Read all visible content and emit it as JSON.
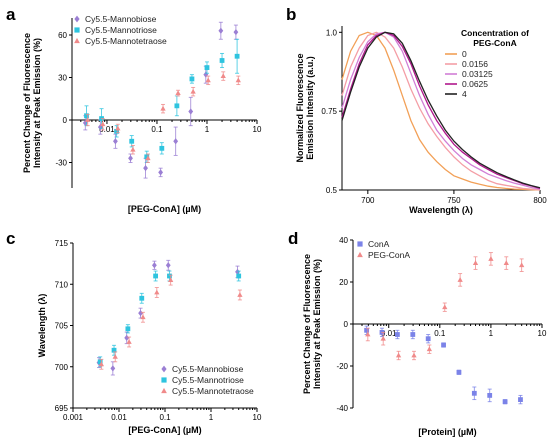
{
  "chart_data": [
    {
      "panel": "a",
      "type": "scatter",
      "xlabel": "[PEG-ConA] (µM)",
      "ylabel": "Percent Change of Fluorescence Intensity at Peak Emission (%)",
      "xscale": "log",
      "xlim": [
        0.002,
        10
      ],
      "ylim": [
        -48,
        72
      ],
      "xticks": [
        0.01,
        0.1,
        1,
        10
      ],
      "xtick_labels": [
        "0.01",
        "0.1",
        "1",
        "10"
      ],
      "yticks": [
        -30,
        0,
        30,
        60
      ],
      "ytick_labels": [
        "-30",
        "0",
        "30",
        "60"
      ],
      "x_axis_at_y": 0,
      "legend_position": "top-left",
      "series": [
        {
          "name": "Cy5.5-Mannobiose",
          "marker": "diamond",
          "color": "#9b7fd4",
          "x": [
            0.0039,
            0.0078,
            0.0156,
            0.03125,
            0.0625,
            0.125,
            0.25,
            0.5,
            1,
            2,
            4
          ],
          "y": [
            -2,
            -5,
            -15,
            -27,
            -34,
            -37,
            -15,
            6,
            32,
            63,
            62
          ],
          "err": [
            5,
            5,
            5,
            3,
            7,
            3,
            10,
            10,
            6,
            6,
            5
          ]
        },
        {
          "name": "Cy5.5-Mannotriose",
          "marker": "square",
          "color": "#2ec4df",
          "x": [
            0.0039,
            0.0078,
            0.0156,
            0.03125,
            0.0625,
            0.125,
            0.25,
            0.5,
            1,
            2,
            4
          ],
          "y": [
            3,
            1,
            -8,
            -15,
            -26,
            -20,
            10,
            29,
            37,
            42,
            45
          ],
          "err": [
            7,
            7,
            4,
            4,
            4,
            4,
            7,
            3,
            4,
            5,
            12
          ]
        },
        {
          "name": "Cy5.5-Mannotetraose",
          "marker": "triangle",
          "color": "#f08a8a",
          "x": [
            0.0039,
            0.0078,
            0.0156,
            0.03125,
            0.0625,
            0.125,
            0.25,
            0.5,
            1,
            2,
            4
          ],
          "y": [
            0,
            -3,
            -6,
            -21,
            -27,
            8,
            19,
            20,
            28,
            31,
            28
          ],
          "err": [
            4,
            4,
            3,
            3,
            3,
            3,
            2,
            3,
            3,
            3,
            3
          ]
        }
      ]
    },
    {
      "panel": "b",
      "type": "line",
      "xlabel": "Wavelength (λ)",
      "ylabel": "Normalized Fluorescence Emission Intensity (a.u.)",
      "xlim": [
        685,
        800
      ],
      "ylim": [
        0.5,
        1.02
      ],
      "xticks": [
        700,
        750,
        800
      ],
      "xtick_labels": [
        "700",
        "750",
        "800"
      ],
      "yticks": [
        0.5,
        0.75,
        1.0
      ],
      "ytick_labels": [
        "0.5",
        "0.75",
        "1.0"
      ],
      "legend_title": "Concentration of PEG-ConA",
      "legend_position": "top-right",
      "series": [
        {
          "name": "0",
          "color": "#f2a057",
          "x": [
            685,
            690,
            695,
            700,
            705,
            710,
            715,
            720,
            725,
            730,
            735,
            740,
            745,
            750,
            755,
            760,
            765,
            770,
            775,
            780,
            785,
            790,
            795,
            800
          ],
          "y": [
            0.85,
            0.94,
            0.99,
            1.0,
            0.99,
            0.95,
            0.88,
            0.8,
            0.72,
            0.66,
            0.62,
            0.59,
            0.565,
            0.545,
            0.535,
            0.525,
            0.518,
            0.512,
            0.508,
            0.505,
            0.503,
            0.502,
            0.501,
            0.5
          ]
        },
        {
          "name": "0.0156",
          "color": "#f49ea6",
          "x": [
            685,
            690,
            695,
            700,
            705,
            710,
            715,
            720,
            725,
            730,
            735,
            740,
            745,
            750,
            755,
            760,
            765,
            770,
            775,
            780,
            785,
            790,
            795,
            800
          ],
          "y": [
            0.8,
            0.89,
            0.95,
            0.99,
            1.0,
            0.985,
            0.95,
            0.89,
            0.82,
            0.76,
            0.71,
            0.67,
            0.635,
            0.605,
            0.58,
            0.56,
            0.545,
            0.53,
            0.52,
            0.515,
            0.51,
            0.505,
            0.503,
            0.5
          ]
        },
        {
          "name": "0.03125",
          "color": "#d17fd6",
          "x": [
            685,
            690,
            695,
            700,
            705,
            710,
            715,
            720,
            725,
            730,
            735,
            740,
            745,
            750,
            755,
            760,
            765,
            770,
            775,
            780,
            785,
            790,
            795,
            800
          ],
          "y": [
            0.76,
            0.85,
            0.92,
            0.97,
            0.995,
            1.0,
            0.985,
            0.94,
            0.87,
            0.8,
            0.74,
            0.69,
            0.655,
            0.625,
            0.6,
            0.58,
            0.565,
            0.55,
            0.54,
            0.53,
            0.522,
            0.515,
            0.508,
            0.503
          ]
        },
        {
          "name": "0.0625",
          "color": "#b0188c",
          "x": [
            685,
            690,
            695,
            700,
            705,
            710,
            715,
            720,
            725,
            730,
            735,
            740,
            745,
            750,
            755,
            760,
            765,
            770,
            775,
            780,
            785,
            790,
            795,
            800
          ],
          "y": [
            0.73,
            0.82,
            0.9,
            0.96,
            0.99,
            1.0,
            0.99,
            0.955,
            0.9,
            0.83,
            0.77,
            0.72,
            0.68,
            0.645,
            0.62,
            0.6,
            0.58,
            0.565,
            0.55,
            0.54,
            0.53,
            0.52,
            0.513,
            0.505
          ]
        },
        {
          "name": "4",
          "color": "#222222",
          "x": [
            685,
            690,
            695,
            700,
            705,
            710,
            715,
            720,
            725,
            730,
            735,
            740,
            745,
            750,
            755,
            760,
            765,
            770,
            775,
            780,
            785,
            790,
            795,
            800
          ],
          "y": [
            0.72,
            0.81,
            0.89,
            0.95,
            0.985,
            1.0,
            0.995,
            0.965,
            0.91,
            0.845,
            0.785,
            0.735,
            0.69,
            0.655,
            0.628,
            0.605,
            0.585,
            0.57,
            0.555,
            0.543,
            0.532,
            0.522,
            0.514,
            0.507
          ]
        }
      ]
    },
    {
      "panel": "c",
      "type": "scatter",
      "xlabel": "[PEG-ConA] (µM)",
      "ylabel": "Wavelength (λ)",
      "xscale": "log",
      "xlim": [
        0.001,
        10
      ],
      "ylim": [
        695,
        715
      ],
      "xticks": [
        0.001,
        0.01,
        0.1,
        1,
        10
      ],
      "xtick_labels": [
        "0.001",
        "0.01",
        "0.1",
        "1",
        "10"
      ],
      "yticks": [
        695,
        700,
        705,
        710,
        715
      ],
      "ytick_labels": [
        "695",
        "700",
        "705",
        "710",
        "715"
      ],
      "legend_position": "bottom-right",
      "series": [
        {
          "name": "Cy5.5-Mannobiose",
          "marker": "diamond",
          "color": "#9b7fd4",
          "x": [
            0.0039,
            0.0078,
            0.0156,
            0.03125,
            0.0625,
            0.125,
            4
          ],
          "y": [
            700.5,
            699.8,
            703.5,
            706.5,
            712.3,
            712.3,
            711.5
          ],
          "err": [
            0.6,
            0.8,
            0.7,
            0.6,
            0.5,
            0.6,
            0.7
          ]
        },
        {
          "name": "Cy5.5-Mannotriose",
          "marker": "square",
          "color": "#2ec4df",
          "x": [
            0.0039,
            0.0078,
            0.0156,
            0.03125,
            0.0625,
            0.125,
            4
          ],
          "y": [
            700.6,
            702.0,
            704.6,
            708.3,
            711.0,
            711.0,
            711.0
          ],
          "err": [
            0.6,
            0.6,
            0.5,
            0.6,
            0.6,
            0.6,
            0.6
          ]
        },
        {
          "name": "Cy5.5-Mannotetraose",
          "marker": "triangle",
          "color": "#f08a8a",
          "x": [
            0.0039,
            0.0078,
            0.0156,
            0.03125,
            0.0625,
            0.125,
            4
          ],
          "y": [
            700.3,
            701.2,
            703.0,
            706.0,
            709.0,
            710.5,
            708.7
          ],
          "err": [
            0.6,
            0.6,
            0.6,
            0.6,
            0.6,
            0.6,
            0.6
          ]
        }
      ]
    },
    {
      "panel": "d",
      "type": "scatter",
      "xlabel": "[Protein] (µM)",
      "ylabel": "Percent Change of Fluorescence Intensity at Peak Emission (%)",
      "xscale": "log",
      "xlim": [
        0.002,
        10
      ],
      "ylim": [
        -40,
        40
      ],
      "xticks": [
        0.01,
        0.1,
        1,
        10
      ],
      "xtick_labels": [
        "0.01",
        "0.1",
        "1",
        "10"
      ],
      "yticks": [
        -40,
        -20,
        0,
        20,
        40
      ],
      "ytick_labels": [
        "-40",
        "-20",
        "0",
        "20",
        "40"
      ],
      "x_axis_at_y": 0,
      "legend_position": "top-left",
      "series": [
        {
          "name": "ConA",
          "marker": "square",
          "color": "#7b83e8",
          "x": [
            0.0039,
            0.0078,
            0.0156,
            0.03125,
            0.0625,
            0.125,
            0.25,
            0.5,
            1,
            2,
            4
          ],
          "y": [
            -3,
            -4,
            -5,
            -5,
            -7,
            -10,
            -23,
            -33,
            -34,
            -37,
            -36
          ],
          "err": [
            2,
            2,
            2,
            2,
            2,
            1,
            1,
            3,
            3,
            1,
            2
          ]
        },
        {
          "name": "PEG-ConA",
          "marker": "triangle",
          "color": "#f08a8a",
          "x": [
            0.0039,
            0.0078,
            0.0156,
            0.03125,
            0.0625,
            0.125,
            0.25,
            0.5,
            1,
            2,
            4
          ],
          "y": [
            -5,
            -7,
            -15,
            -15,
            -12,
            8,
            21,
            29,
            31,
            29,
            28
          ],
          "err": [
            3,
            3,
            2,
            2,
            2,
            2,
            3,
            3,
            3,
            3,
            3
          ]
        }
      ]
    }
  ]
}
